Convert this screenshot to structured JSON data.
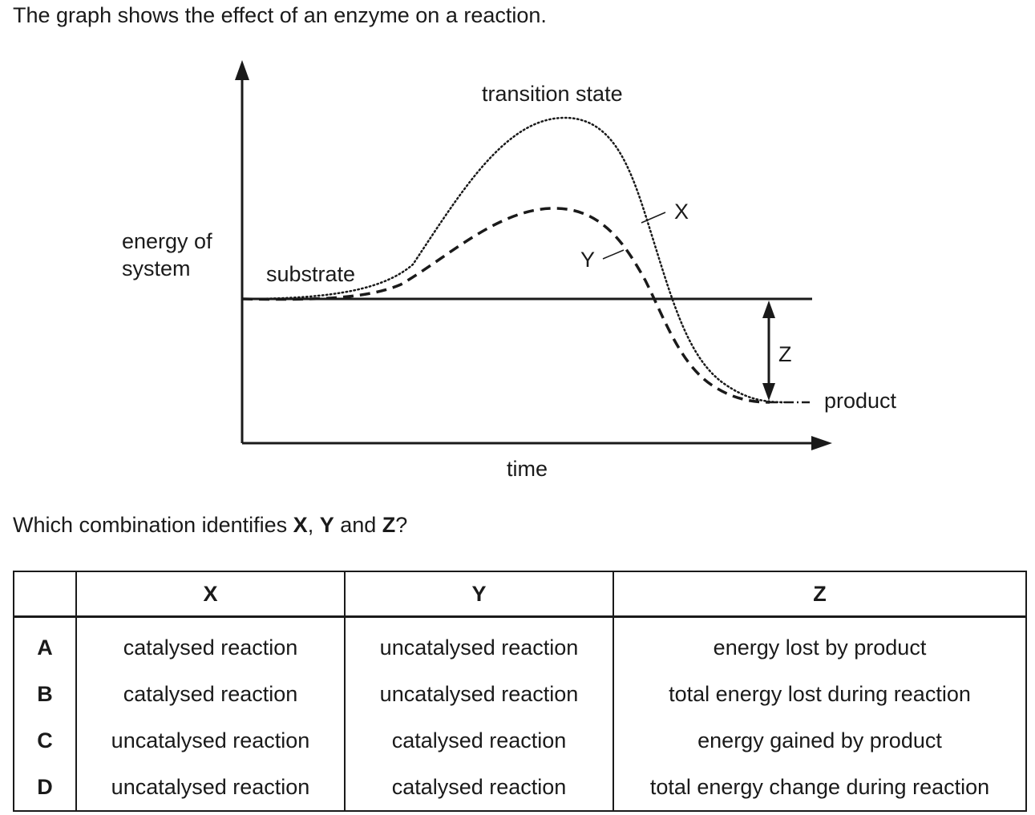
{
  "intro": "The graph shows the effect of an enzyme on a reaction.",
  "diagram": {
    "y_axis_label_line1": "energy of",
    "y_axis_label_line2": "system",
    "x_axis_label": "time",
    "substrate_label": "substrate",
    "transition_state_label": "transition state",
    "product_label": "product",
    "curve_x_label": "X",
    "curve_y_label": "Y",
    "arrow_z_label": "Z"
  },
  "question": {
    "prefix": "Which combination identifies ",
    "x": "X",
    "sep1": ", ",
    "y": "Y",
    "sep2": " and ",
    "z": "Z",
    "suffix": "?"
  },
  "table": {
    "headers": [
      "",
      "X",
      "Y",
      "Z"
    ],
    "rows": [
      {
        "option": "A",
        "x": "catalysed reaction",
        "y": "uncatalysed reaction",
        "z": "energy lost by product"
      },
      {
        "option": "B",
        "x": "catalysed reaction",
        "y": "uncatalysed reaction",
        "z": "total energy lost during reaction"
      },
      {
        "option": "C",
        "x": "uncatalysed reaction",
        "y": "catalysed reaction",
        "z": "energy gained by product"
      },
      {
        "option": "D",
        "x": "uncatalysed reaction",
        "y": "catalysed reaction",
        "z": "total energy change during reaction"
      }
    ]
  }
}
